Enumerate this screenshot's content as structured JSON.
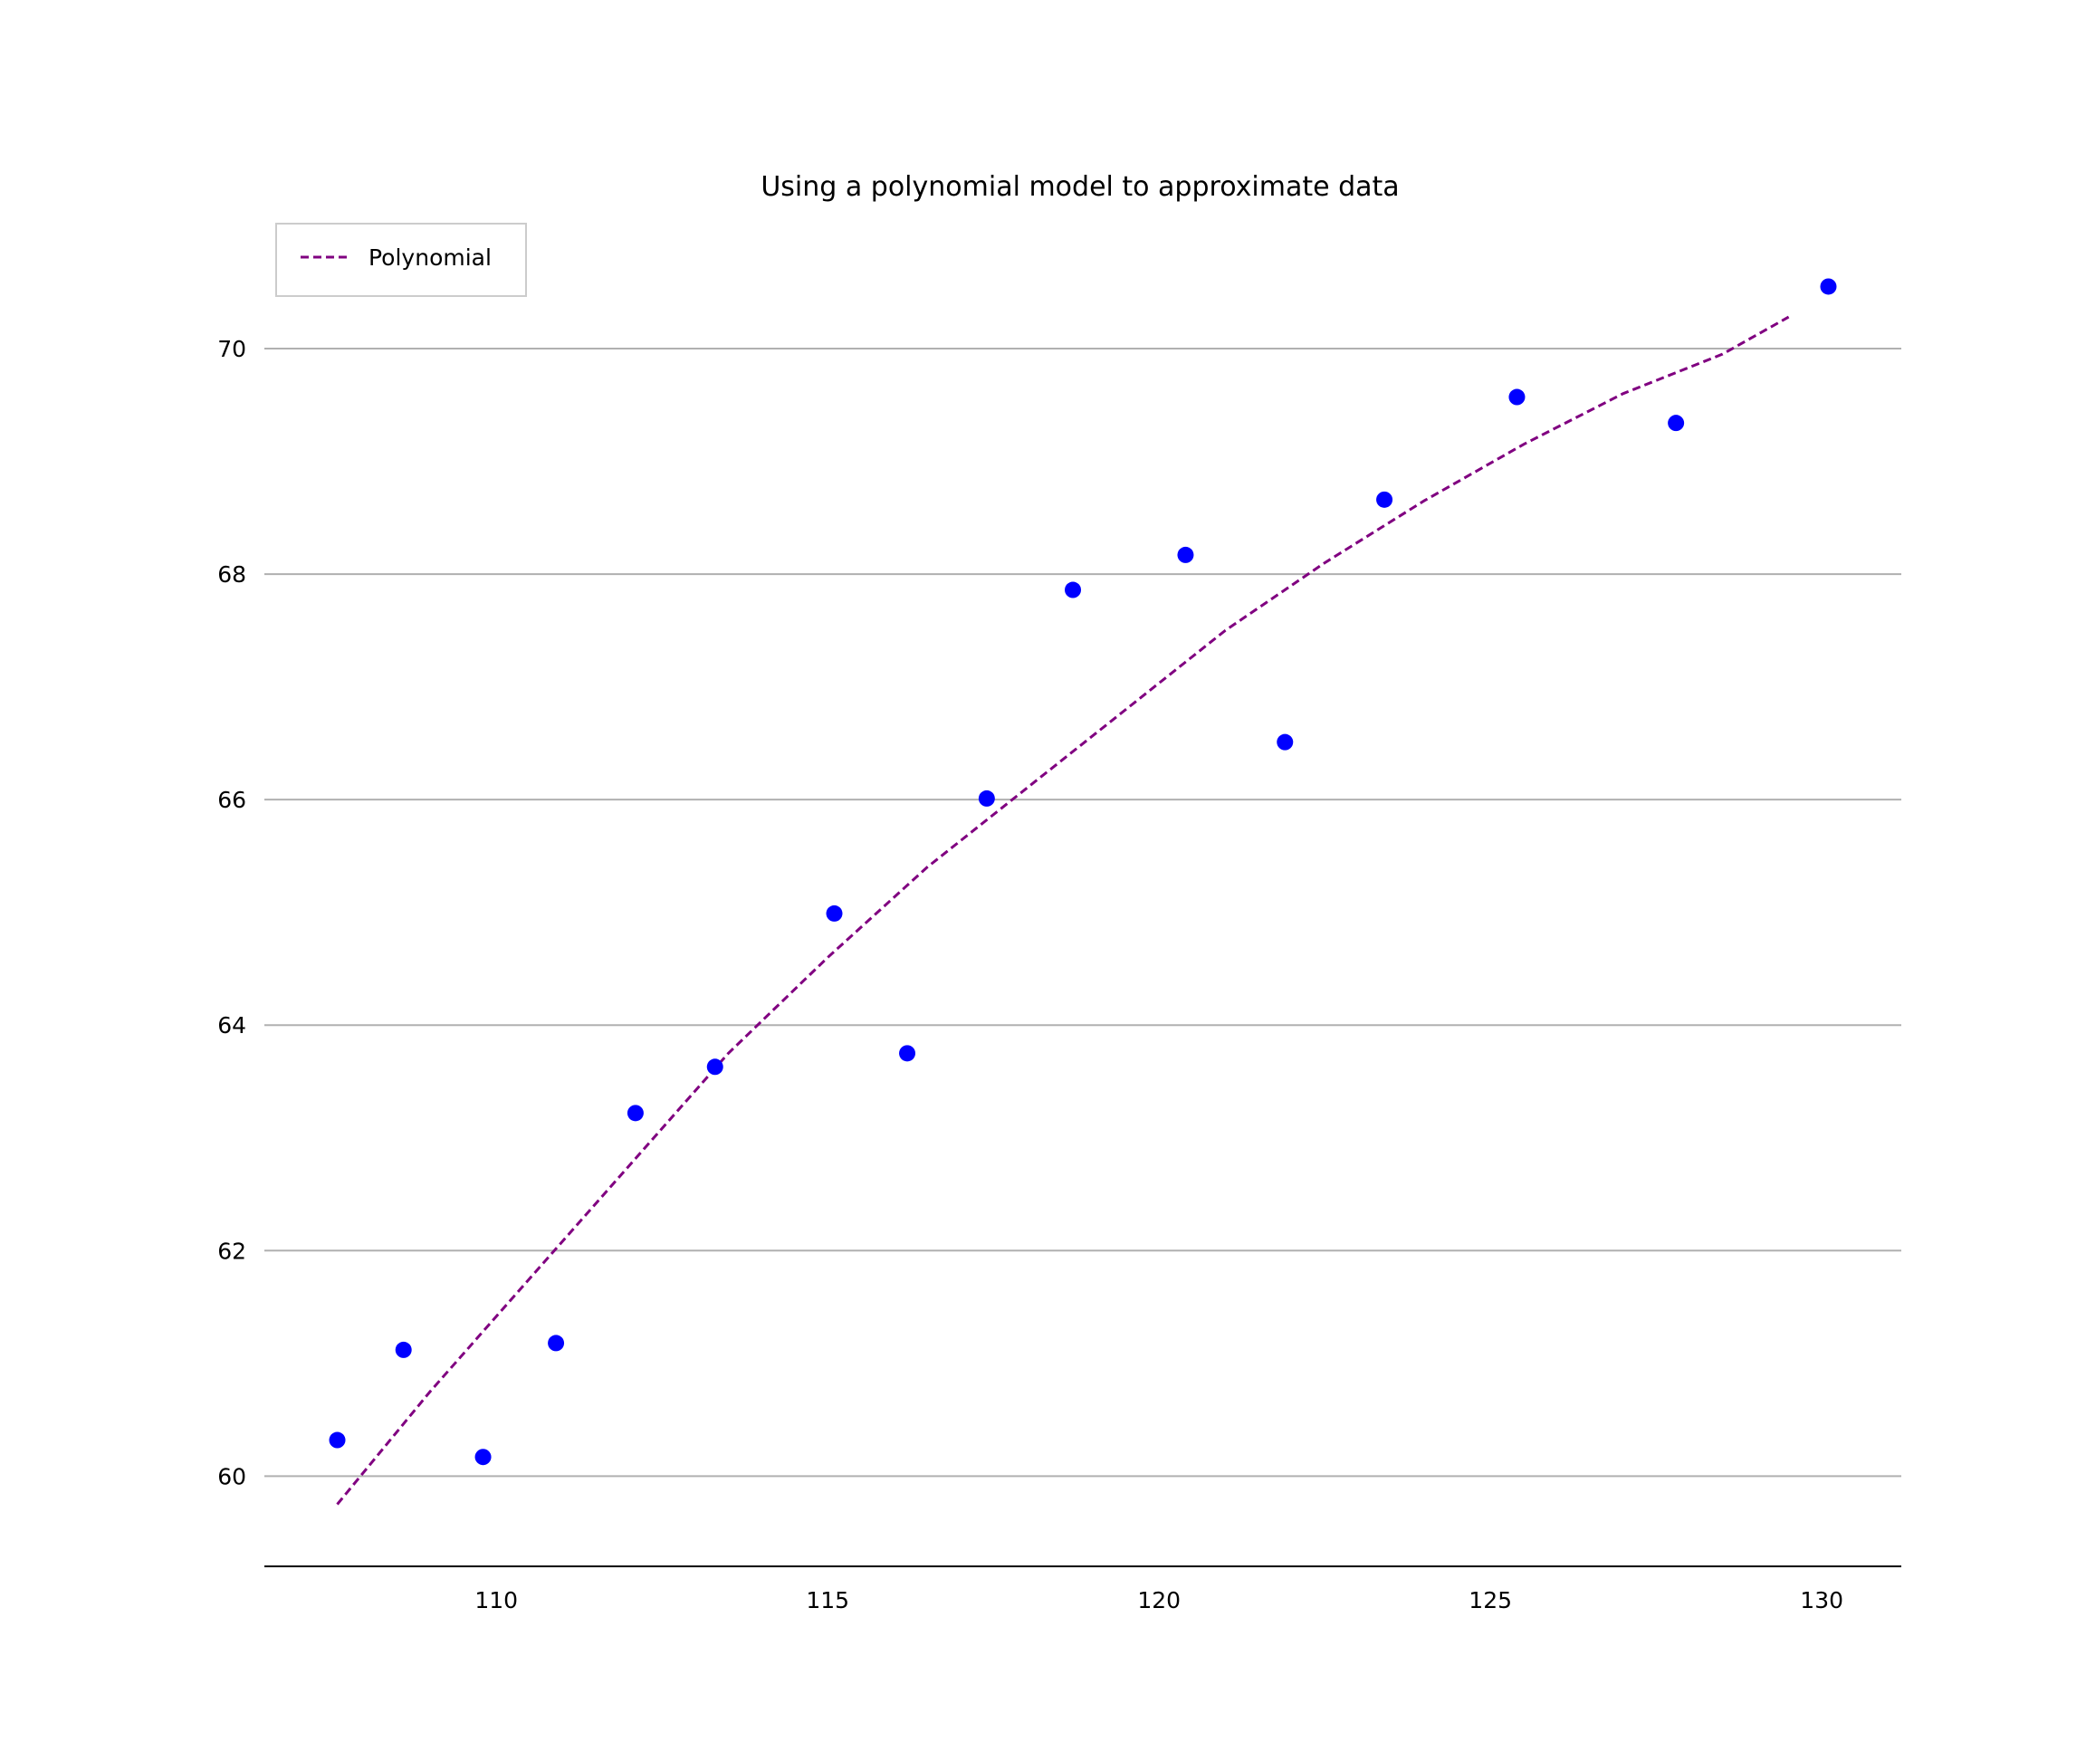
{
  "chart_data": {
    "type": "scatter",
    "title": "Using a polynomial model to approximate data",
    "xlabel": "",
    "ylabel": "",
    "xlim": [
      106.5,
      131.2
    ],
    "ylim": [
      59.2,
      71.1
    ],
    "x_ticks": [
      110,
      115,
      120,
      125,
      130
    ],
    "y_ticks": [
      60,
      62,
      64,
      66,
      68,
      70
    ],
    "grid": "horizontal",
    "legend_position": "top-left",
    "colors": {
      "points": "#0000ff",
      "curve": "#800080",
      "grid": "#b0b0b0",
      "axis": "#000000"
    },
    "series": [
      {
        "name": "",
        "kind": "scatter",
        "points": [
          {
            "x": 107.6,
            "y": 60.32
          },
          {
            "x": 108.6,
            "y": 61.12
          },
          {
            "x": 109.8,
            "y": 60.17
          },
          {
            "x": 110.9,
            "y": 61.18
          },
          {
            "x": 112.1,
            "y": 63.22
          },
          {
            "x": 113.3,
            "y": 63.63
          },
          {
            "x": 115.1,
            "y": 64.99
          },
          {
            "x": 116.2,
            "y": 63.75
          },
          {
            "x": 117.4,
            "y": 66.01
          },
          {
            "x": 118.7,
            "y": 67.86
          },
          {
            "x": 120.4,
            "y": 68.17
          },
          {
            "x": 121.9,
            "y": 66.51
          },
          {
            "x": 123.4,
            "y": 68.66
          },
          {
            "x": 125.4,
            "y": 69.57
          },
          {
            "x": 127.8,
            "y": 69.34
          },
          {
            "x": 130.1,
            "y": 70.55
          }
        ]
      },
      {
        "name": "Polynomial",
        "kind": "line",
        "dashed": true,
        "points": [
          {
            "x": 107.6,
            "y": 59.75
          },
          {
            "x": 109.0,
            "y": 60.75
          },
          {
            "x": 110.5,
            "y": 61.75
          },
          {
            "x": 112.0,
            "y": 62.75
          },
          {
            "x": 113.5,
            "y": 63.75
          },
          {
            "x": 115.0,
            "y": 64.6
          },
          {
            "x": 116.5,
            "y": 65.4
          },
          {
            "x": 118.0,
            "y": 66.1
          },
          {
            "x": 119.5,
            "y": 66.8
          },
          {
            "x": 121.0,
            "y": 67.5
          },
          {
            "x": 122.5,
            "y": 68.1
          },
          {
            "x": 124.0,
            "y": 68.65
          },
          {
            "x": 125.5,
            "y": 69.15
          },
          {
            "x": 127.0,
            "y": 69.6
          },
          {
            "x": 128.5,
            "y": 69.95
          },
          {
            "x": 129.5,
            "y": 70.28
          }
        ]
      }
    ]
  }
}
